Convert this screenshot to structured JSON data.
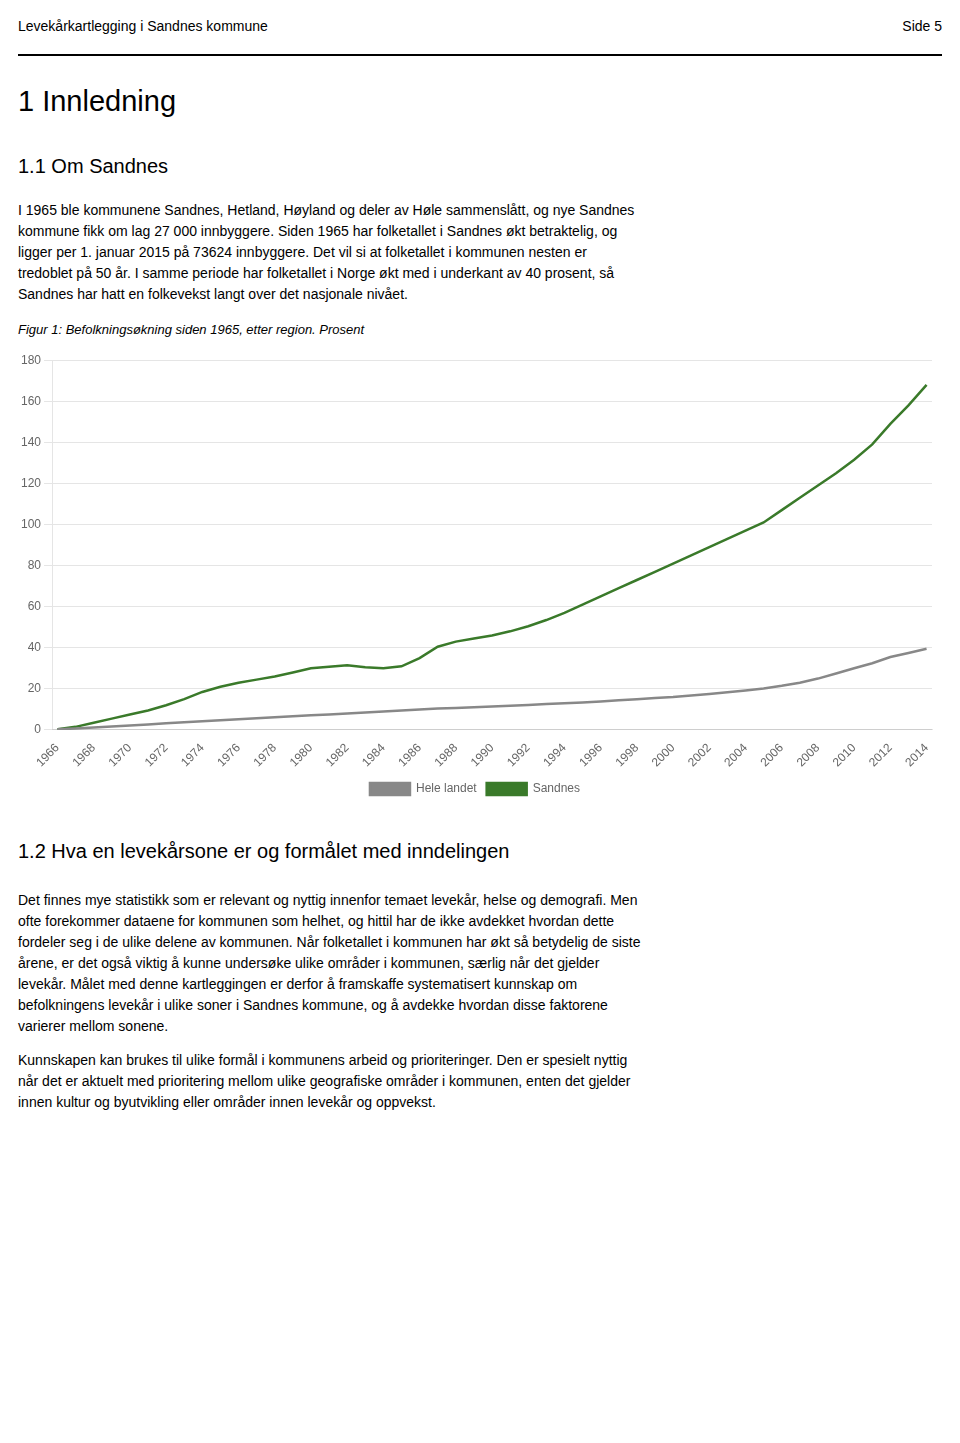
{
  "header_left": "Levekårkartlegging i Sandnes kommune",
  "header_right": "Side 5",
  "section1_title": "1    Innledning",
  "subsection1_title": "1.1    Om Sandnes",
  "para1_lines": [
    "I 1965 ble kommunene Sandnes, Hetland, Høyland og deler av Høle sammenslått, og nye Sandnes",
    "kommune fikk om lag 27 000 innbyggere. Siden 1965 har folketallet i Sandnes økt betraktelig, og",
    "ligger per 1. januar 2015 på 73624 innbyggere. Det vil si at folketallet i kommunen nesten er",
    "tredoblet på 50 år. I samme periode har folketallet i Norge økt med i underkant av 40 prosent, så",
    "Sandnes har hatt en folkevekst langt over det nasjonale nivået."
  ],
  "section2_title": "1.2    Hva en levekårsone er og formålet med inndelingen",
  "para2_lines": [
    "Det finnes mye statistikk som er relevant og nyttig innenfor temaet levekår, helse og demografi. Men",
    "ofte forekommer dataene for kommunen som helhet, og hittil har de ikke avdekket hvordan dette",
    "fordeler seg i de ulike delene av kommunen. Når folketallet i kommunen har økt så betydelig de siste",
    "årene, er det også viktig å kunne undersøke ulike områder i kommunen, særlig når det gjelder",
    "levekår. Målet med denne kartleggingen er derfor å framskaffe systematisert kunnskap om",
    "befolkningens levekår i ulike soner i Sandnes kommune, og å avdekke hvordan disse faktorene",
    "varierer mellom sonene."
  ],
  "para3_lines": [
    "Kunnskapen kan brukes til ulike formål i kommunens arbeid og prioriteringer. Den er spesielt nyttig",
    "når det er aktuelt med prioritering mellom ulike geografiske områder i kommunen, enten det gjelder",
    "innen kultur og byutvikling eller områder innen levekår og oppvekst."
  ],
  "chart_data": {
    "type": "line",
    "title": "Figur 1: Befolkningsøkning siden 1965, etter region. Prosent",
    "x": [
      1966,
      1967,
      1968,
      1969,
      1970,
      1971,
      1972,
      1973,
      1974,
      1975,
      1976,
      1977,
      1978,
      1979,
      1980,
      1981,
      1982,
      1983,
      1984,
      1985,
      1986,
      1987,
      1988,
      1989,
      1990,
      1991,
      1992,
      1993,
      1994,
      1995,
      1996,
      1997,
      1998,
      1999,
      2000,
      2001,
      2002,
      2003,
      2004,
      2005,
      2006,
      2007,
      2008,
      2009,
      2010,
      2011,
      2012,
      2013,
      2014
    ],
    "series": [
      {
        "name": "Hele landet",
        "color": "#888888",
        "values": [
          0.3,
          0.7,
          1.2,
          1.7,
          2.2,
          2.7,
          3.2,
          3.7,
          4.2,
          4.7,
          5.2,
          5.7,
          6.2,
          6.7,
          7.1,
          7.5,
          8.0,
          8.5,
          9.0,
          9.5,
          10.0,
          10.4,
          10.7,
          11.0,
          11.4,
          11.8,
          12.2,
          12.6,
          13.0,
          13.4,
          13.9,
          14.4,
          15.0,
          15.5,
          16.0,
          16.8,
          17.5,
          18.3,
          19.2,
          20.2,
          21.5,
          23.0,
          25.0,
          27.5,
          30.0,
          32.5,
          35.5,
          37.5,
          39.5
        ]
      },
      {
        "name": "Sandnes",
        "color": "#3a7a2a",
        "values": [
          0.3,
          1.5,
          3.5,
          5.5,
          7.5,
          9.5,
          12.0,
          15.0,
          18.5,
          21.0,
          23.0,
          24.5,
          26.0,
          28.0,
          30.0,
          30.8,
          31.5,
          30.5,
          30.0,
          31.0,
          35.0,
          40.5,
          43.0,
          44.5,
          46.0,
          48.0,
          50.5,
          53.5,
          57.0,
          61.0,
          65.0,
          69.0,
          73.0,
          77.0,
          81.0,
          85.0,
          89.0,
          93.0,
          97.0,
          101.0,
          107.0,
          113.0,
          119.0,
          125.0,
          131.5,
          139.0,
          149.0,
          158.0,
          168.0
        ]
      }
    ],
    "xlim": [
      1965.7,
      2014.3
    ],
    "xticks": [
      1966,
      1968,
      1970,
      1972,
      1974,
      1976,
      1978,
      1980,
      1982,
      1984,
      1986,
      1988,
      1990,
      1992,
      1994,
      1996,
      1998,
      2000,
      2002,
      2004,
      2006,
      2008,
      2010,
      2012,
      2014
    ],
    "ylim": [
      0,
      180
    ],
    "yticks": [
      0,
      20,
      40,
      60,
      80,
      100,
      120,
      140,
      160,
      180
    ],
    "grid": "y",
    "legend": "bottom",
    "marker": "none"
  }
}
